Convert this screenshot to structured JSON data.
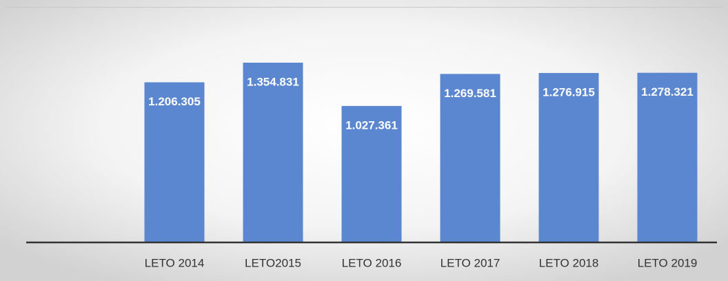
{
  "chart_data": {
    "type": "bar",
    "categories": [
      "LETO 2014",
      "LETO2015",
      "LETO 2016",
      "LETO 2017",
      "LETO 2018",
      "LETO 2019"
    ],
    "values": [
      1206305,
      1354831,
      1027361,
      1269581,
      1276915,
      1278321
    ],
    "value_labels": [
      "1.206.305",
      "1.354.831",
      "1.027.361",
      "1.269.581",
      "1.276.915",
      "1.278.321"
    ],
    "color": "#5b87d1"
  }
}
